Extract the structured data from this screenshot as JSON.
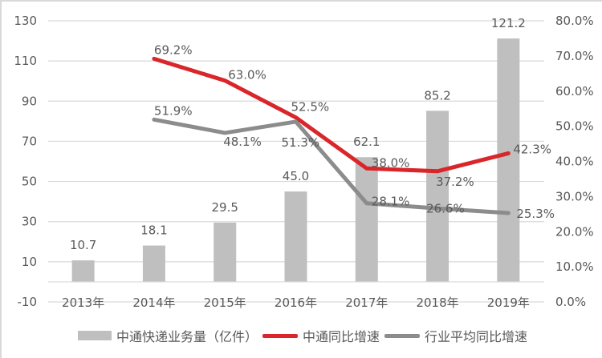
{
  "chart_data": {
    "type": "bar+line",
    "title": "",
    "categories": [
      "2013年",
      "2014年",
      "2015年",
      "2016年",
      "2017年",
      "2018年",
      "2019年"
    ],
    "series": [
      {
        "name": "中通快递业务量（亿件）",
        "type": "bar",
        "axis": "left",
        "color": "#bfbfbf",
        "values": [
          10.7,
          18.1,
          29.5,
          45.0,
          62.1,
          85.2,
          121.2
        ],
        "labels": [
          "10.7",
          "18.1",
          "29.5",
          "45.0",
          "62.1",
          "85.2",
          "121.2"
        ]
      },
      {
        "name": "中通同比增速",
        "type": "line",
        "axis": "right",
        "color": "#d9262a",
        "values": [
          null,
          69.2,
          63.0,
          52.5,
          38.0,
          37.2,
          42.3
        ],
        "labels": [
          "",
          "69.2%",
          "63.0%",
          "52.5%",
          "38.0%",
          "37.2%",
          "42.3%"
        ]
      },
      {
        "name": "行业平均同比增速",
        "type": "line",
        "axis": "right",
        "color": "#8c8c8c",
        "values": [
          null,
          51.9,
          48.1,
          51.3,
          28.1,
          26.6,
          25.3
        ],
        "labels": [
          "",
          "51.9%",
          "48.1%",
          "51.3%",
          "28.1%",
          "26.6%",
          "25.3%"
        ]
      }
    ],
    "left_axis": {
      "ticks": [
        "130",
        "110",
        "90",
        "70",
        "50",
        "30",
        "10",
        "-10"
      ],
      "ylim": [
        -10,
        130
      ]
    },
    "right_axis": {
      "ticks": [
        "80.0%",
        "70.0%",
        "60.0%",
        "50.0%",
        "40.0%",
        "30.0%",
        "20.0%",
        "10.0%",
        "0.0%"
      ],
      "ylim": [
        0,
        80
      ]
    },
    "xlabel": "",
    "ylabel": "",
    "grid": true,
    "legend_position": "bottom"
  },
  "legend": {
    "items": [
      {
        "label": "中通快递业务量（亿件）",
        "kind": "bar",
        "color": "#bfbfbf"
      },
      {
        "label": "中通同比增速",
        "kind": "line",
        "color": "#d9262a"
      },
      {
        "label": "行业平均同比增速",
        "kind": "line",
        "color": "#8c8c8c"
      }
    ]
  }
}
